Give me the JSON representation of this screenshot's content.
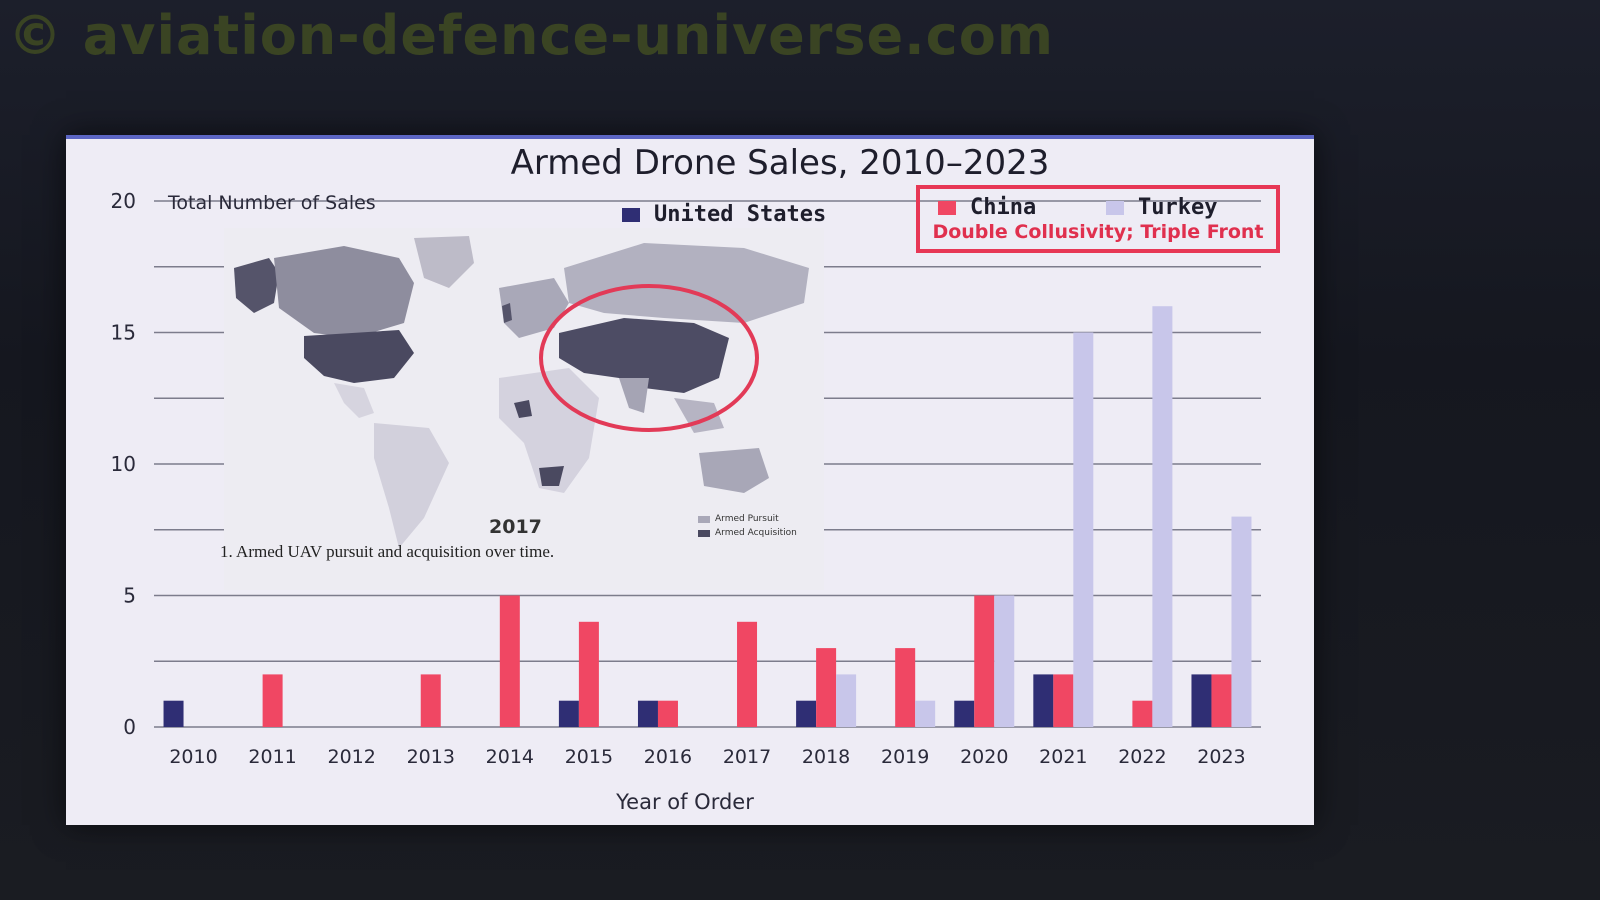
{
  "watermark": "© aviation-defence-universe.com",
  "colors": {
    "united_states": "#2f2e74",
    "china": "#f04763",
    "turkey": "#c8c6ea",
    "grid": "#7c7c8c",
    "annotation": "#e73755"
  },
  "annotation": "Double Collusivity; Triple Front",
  "map_inset": {
    "year": "2017",
    "caption": "1. Armed UAV pursuit and acquisition over time.",
    "legend_pursuit": "Armed Pursuit",
    "legend_acquisition": "Armed Acquisition"
  },
  "chart_data": {
    "type": "bar",
    "title": "Armed Drone Sales, 2010–2023",
    "ylabel": "Total Number of Sales",
    "xlabel": "Year of Order",
    "ylim": [
      0,
      20
    ],
    "yticks": [
      "0",
      "5",
      "10",
      "15",
      "20"
    ],
    "grid": true,
    "legend_position": "top-right",
    "categories": [
      "2010",
      "2011",
      "2012",
      "2013",
      "2014",
      "2015",
      "2016",
      "2017",
      "2018",
      "2019",
      "2020",
      "2021",
      "2022",
      "2023"
    ],
    "series": [
      {
        "name": "United States",
        "values": [
          1,
          0,
          0,
          0,
          0,
          1,
          1,
          0,
          1,
          0,
          1,
          2,
          0,
          2
        ]
      },
      {
        "name": "China",
        "values": [
          0,
          2,
          0,
          2,
          5,
          4,
          1,
          4,
          3,
          3,
          5,
          2,
          1,
          2
        ]
      },
      {
        "name": "Turkey",
        "values": [
          0,
          0,
          0,
          0,
          0,
          0,
          0,
          0,
          2,
          1,
          5,
          15,
          16,
          8
        ]
      }
    ]
  }
}
